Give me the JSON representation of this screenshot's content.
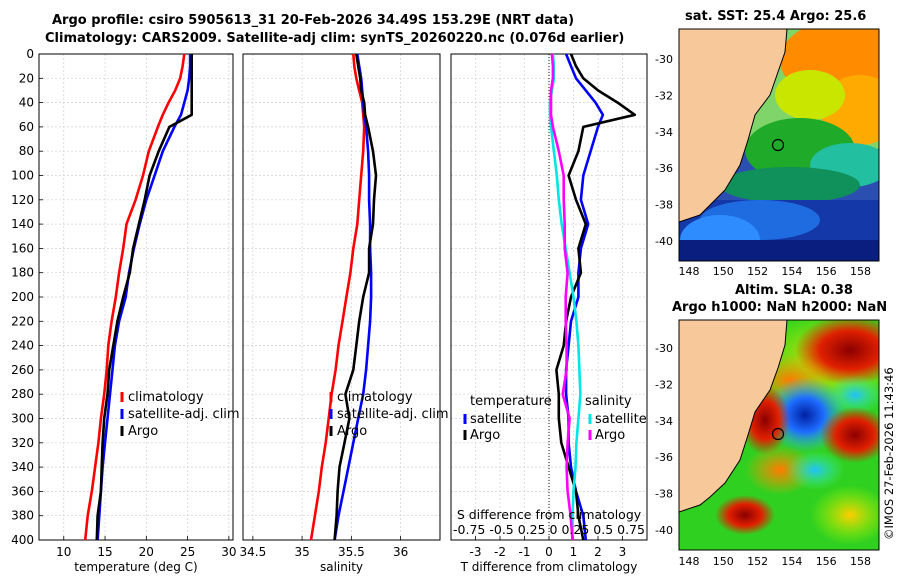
{
  "header": {
    "title_line1": "Argo profile: csiro 5905613_31 20-Feb-2026 34.49S 153.29E (NRT data)",
    "title_line2": "Climatology: CARS2009. Satellite-adj clim: synTS_20260220.nc (0.076d earlier)"
  },
  "maps": {
    "sst_title": "sat. SST: 25.4 Argo: 25.6",
    "sla_title1": "Altim. SLA: 0.38",
    "sla_title2": "Argo h1000: NaN h2000: NaN",
    "lat_ticks": [
      "-30",
      "-32",
      "-34",
      "-36",
      "-38",
      "-40"
    ],
    "lon_ticks": [
      "148",
      "150",
      "152",
      "154",
      "156",
      "158"
    ],
    "colors": {
      "land": "#f7c99a"
    }
  },
  "watermark": "©IMOS 27-Feb-2026 11:43:46",
  "chart_data": [
    {
      "type": "line",
      "name": "temperature",
      "xlabel": "temperature (deg C)",
      "ylabel": "",
      "xlim": [
        7,
        30.5
      ],
      "xticks": [
        10,
        15,
        20,
        25,
        30
      ],
      "ylim": [
        0,
        400
      ],
      "yticks": [
        0,
        20,
        40,
        60,
        80,
        100,
        120,
        140,
        160,
        180,
        200,
        220,
        240,
        260,
        280,
        300,
        320,
        340,
        360,
        380,
        400
      ],
      "legend": [
        "climatology",
        "satellite-adj. clim",
        "Argo"
      ],
      "depth": [
        0,
        10,
        20,
        30,
        40,
        50,
        60,
        80,
        100,
        120,
        140,
        160,
        180,
        200,
        220,
        240,
        260,
        280,
        300,
        320,
        340,
        360,
        380,
        400
      ],
      "series": [
        {
          "name": "climatology",
          "color": "#ff0000",
          "values": [
            24.6,
            24.4,
            24.1,
            23.5,
            22.7,
            22.0,
            21.4,
            20.3,
            19.6,
            18.7,
            17.6,
            17.2,
            16.7,
            16.3,
            15.8,
            15.4,
            15.2,
            14.9,
            14.5,
            14.2,
            13.8,
            13.4,
            12.9,
            12.6
          ]
        },
        {
          "name": "satellite-adj. clim",
          "color": "#0000ff",
          "values": [
            25.3,
            25.3,
            25.2,
            25.0,
            24.6,
            24.2,
            23.4,
            22.0,
            21.0,
            20.0,
            19.2,
            18.5,
            17.9,
            17.5,
            16.7,
            16.2,
            15.9,
            15.6,
            15.3,
            15.0,
            14.7,
            14.5,
            14.3,
            14.1
          ]
        },
        {
          "name": "Argo",
          "color": "#000000",
          "values": [
            25.5,
            25.5,
            25.5,
            25.5,
            25.5,
            25.5,
            22.8,
            21.5,
            20.4,
            19.8,
            19.1,
            18.4,
            18.0,
            17.2,
            16.5,
            16.0,
            15.5,
            15.3,
            14.9,
            14.7,
            14.6,
            14.5,
            14.1,
            14.0
          ]
        }
      ]
    },
    {
      "type": "line",
      "name": "salinity",
      "xlabel": "salinity",
      "ylabel": "",
      "xlim": [
        34.4,
        36.4
      ],
      "xticks": [
        34.5,
        35,
        35.5,
        36
      ],
      "ylim": [
        0,
        400
      ],
      "legend": [
        "climatology",
        "satellite-adj. clim",
        "Argo"
      ],
      "depth": [
        0,
        10,
        20,
        30,
        40,
        50,
        60,
        80,
        100,
        120,
        140,
        160,
        180,
        200,
        220,
        240,
        260,
        280,
        300,
        320,
        340,
        360,
        380,
        400
      ],
      "series": [
        {
          "name": "climatology",
          "color": "#ff0000",
          "values": [
            35.52,
            35.53,
            35.55,
            35.58,
            35.61,
            35.62,
            35.63,
            35.62,
            35.6,
            35.58,
            35.56,
            35.52,
            35.49,
            35.45,
            35.41,
            35.37,
            35.34,
            35.3,
            35.27,
            35.24,
            35.2,
            35.17,
            35.13,
            35.09
          ]
        },
        {
          "name": "satellite-adj. clim",
          "color": "#0000ff",
          "values": [
            35.56,
            35.58,
            35.6,
            35.61,
            35.62,
            35.63,
            35.65,
            35.67,
            35.68,
            35.68,
            35.69,
            35.69,
            35.7,
            35.7,
            35.69,
            35.67,
            35.65,
            35.62,
            35.57,
            35.52,
            35.47,
            35.42,
            35.37,
            35.33
          ]
        },
        {
          "name": "Argo",
          "color": "#000000",
          "values": [
            35.55,
            35.57,
            35.59,
            35.6,
            35.63,
            35.64,
            35.67,
            35.72,
            35.75,
            35.73,
            35.72,
            35.68,
            35.68,
            35.62,
            35.58,
            35.55,
            35.52,
            35.44,
            35.48,
            35.43,
            35.38,
            35.36,
            35.35,
            35.33
          ]
        }
      ]
    },
    {
      "type": "line",
      "name": "difference from climatology",
      "xlabel": "T difference from climatology",
      "x2label": "S difference from climatology",
      "xlim": [
        -4,
        4
      ],
      "xticks": [
        -3,
        -2,
        -1,
        0,
        1,
        2,
        3
      ],
      "x2lim": [
        -1,
        1
      ],
      "x2tick_labels": [
        "-0.75",
        "-0.5",
        "0.25",
        "0",
        "0.25",
        "0.5",
        "0.75"
      ],
      "ylim": [
        0,
        400
      ],
      "legend_left_title": "temperature",
      "legend_right_title": "salinity",
      "legend_left": [
        "satellite",
        "Argo"
      ],
      "legend_right": [
        "satellite",
        "Argo"
      ],
      "depth": [
        0,
        10,
        20,
        30,
        40,
        50,
        60,
        80,
        100,
        120,
        140,
        160,
        180,
        200,
        220,
        240,
        260,
        280,
        300,
        320,
        340,
        360,
        380,
        400
      ],
      "series": [
        {
          "name": "T satellite",
          "axis": "T",
          "color": "#0000ff",
          "values": [
            0.7,
            0.9,
            1.1,
            1.5,
            1.9,
            2.2,
            2.0,
            1.7,
            1.4,
            1.3,
            1.6,
            1.3,
            1.2,
            1.2,
            0.9,
            0.8,
            0.7,
            0.7,
            0.8,
            0.8,
            0.9,
            1.1,
            1.4,
            1.5
          ]
        },
        {
          "name": "T Argo",
          "axis": "T",
          "color": "#000000",
          "values": [
            0.9,
            1.1,
            1.4,
            2.0,
            2.8,
            3.5,
            1.4,
            1.2,
            0.8,
            1.1,
            1.5,
            1.2,
            1.3,
            0.9,
            0.7,
            0.6,
            0.3,
            0.4,
            0.4,
            0.5,
            0.8,
            1.1,
            1.2,
            1.4
          ]
        },
        {
          "name": "S satellite",
          "axis": "S",
          "color": "#00e5e5",
          "values": [
            0.04,
            0.05,
            0.05,
            0.03,
            0.01,
            0.01,
            0.02,
            0.05,
            0.08,
            0.1,
            0.13,
            0.17,
            0.21,
            0.25,
            0.28,
            0.3,
            0.31,
            0.32,
            0.3,
            0.28,
            0.27,
            0.25,
            0.24,
            0.24
          ]
        },
        {
          "name": "S Argo",
          "axis": "S",
          "color": "#ff00ff",
          "values": [
            0.03,
            0.04,
            0.04,
            0.02,
            0.02,
            0.02,
            0.04,
            0.1,
            0.15,
            0.15,
            0.16,
            0.16,
            0.19,
            0.17,
            0.17,
            0.18,
            0.18,
            0.14,
            0.21,
            0.19,
            0.18,
            0.19,
            0.22,
            0.24
          ]
        }
      ]
    }
  ]
}
